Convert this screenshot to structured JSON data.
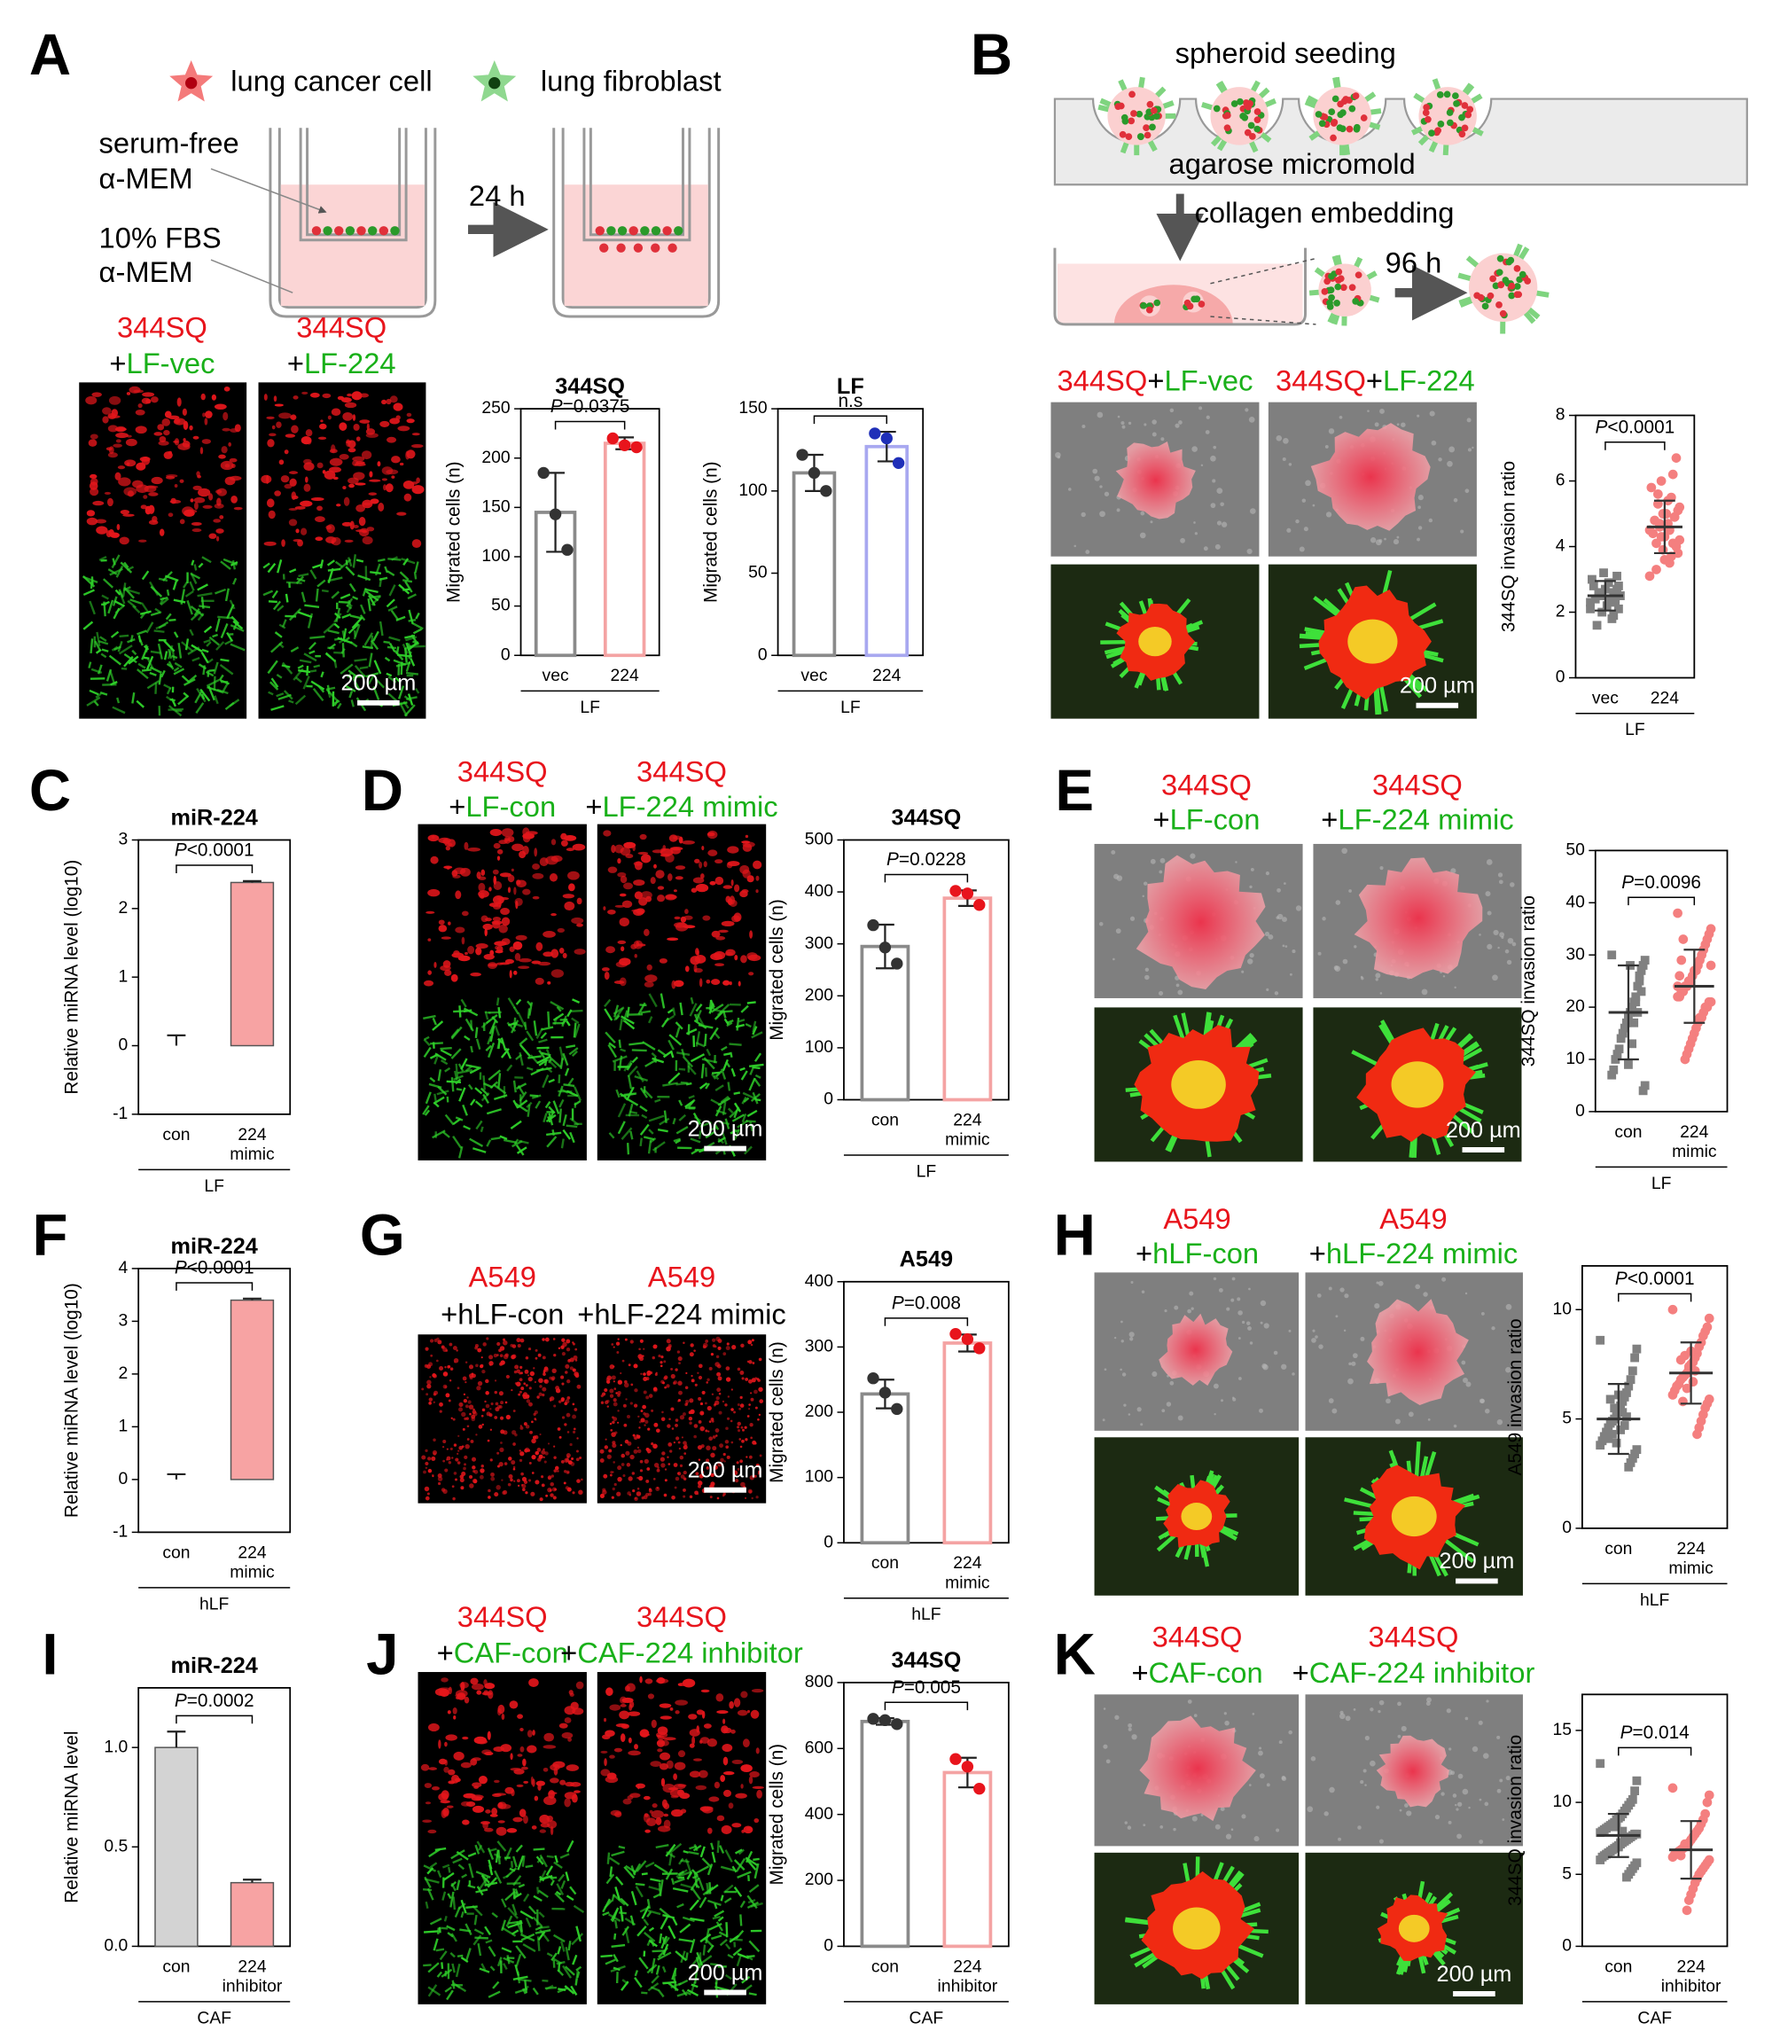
{
  "panels": [
    {
      "letter": "A",
      "cell_color": "#e8141c",
      "fibroblast_color": "#19b019",
      "image_labels": [
        {
          "cell": "344SQ",
          "plus": "+",
          "fibroblast": "LF-vec"
        },
        {
          "cell": "344SQ",
          "plus": "+",
          "fibroblast": "LF-224"
        }
      ],
      "scale_bar": "200 µm"
    },
    {
      "letter": "B",
      "label_layout": "inline",
      "cell_color": "#e8141c",
      "fibroblast_color": "#19b019",
      "image_labels": [
        {
          "cell": "344SQ",
          "plus": "+",
          "fibroblast": "LF-vec"
        },
        {
          "cell": "344SQ",
          "plus": "+",
          "fibroblast": "LF-224"
        }
      ],
      "scale_bar": "200 µm"
    },
    {
      "letter": "C"
    },
    {
      "letter": "D",
      "cell_color": "#e8141c",
      "fibroblast_color": "#19b019",
      "image_labels": [
        {
          "cell": "344SQ",
          "plus": "+",
          "fibroblast": "LF-con"
        },
        {
          "cell": "344SQ",
          "plus": "+",
          "fibroblast": "LF-224 mimic"
        }
      ],
      "scale_bar": "200 µm"
    },
    {
      "letter": "E",
      "cell_color": "#e8141c",
      "fibroblast_color": "#19b019",
      "image_labels": [
        {
          "cell": "344SQ",
          "plus": "+",
          "fibroblast": "LF-con"
        },
        {
          "cell": "344SQ",
          "plus": "+",
          "fibroblast": "LF-224 mimic"
        }
      ],
      "scale_bar": "200 µm"
    },
    {
      "letter": "F"
    },
    {
      "letter": "G",
      "cell_color": "#e8141c",
      "fibroblast_color": "#000000",
      "image_labels": [
        {
          "cell": "A549",
          "plus": "+",
          "fibroblast": "hLF-con"
        },
        {
          "cell": "A549",
          "plus": "+",
          "fibroblast": "hLF-224 mimic"
        }
      ],
      "scale_bar": "200 µm"
    },
    {
      "letter": "H",
      "cell_color": "#e8141c",
      "fibroblast_color": "#19b019",
      "image_labels": [
        {
          "cell": "A549",
          "plus": "+",
          "fibroblast": "hLF-con"
        },
        {
          "cell": "A549",
          "plus": "+",
          "fibroblast": "hLF-224 mimic"
        }
      ],
      "scale_bar": "200 µm"
    },
    {
      "letter": "I"
    },
    {
      "letter": "J",
      "cell_color": "#e8141c",
      "fibroblast_color": "#19b019",
      "image_labels": [
        {
          "cell": "344SQ",
          "plus": "+",
          "fibroblast": "CAF-con"
        },
        {
          "cell": "344SQ",
          "plus": "+",
          "fibroblast": "CAF-224 inhibitor"
        }
      ],
      "scale_bar": "200 µm"
    },
    {
      "letter": "K",
      "cell_color": "#e8141c",
      "fibroblast_color": "#19b019",
      "image_labels": [
        {
          "cell": "344SQ",
          "plus": "+",
          "fibroblast": "CAF-con"
        },
        {
          "cell": "344SQ",
          "plus": "+",
          "fibroblast": "CAF-224 inhibitor"
        }
      ],
      "scale_bar": "200 µm"
    }
  ],
  "schematic_A": {
    "legend": [
      "lung cancer cell",
      "lung fibroblast"
    ],
    "upper_medium": [
      "serum-free",
      "α-MEM"
    ],
    "lower_medium": [
      "10% FBS",
      "α-MEM"
    ],
    "time": "24 h"
  },
  "schematic_B": {
    "step1": "spheroid seeding",
    "mold": "agarose micromold",
    "step2": "collagen embedding",
    "time": "96 h"
  },
  "chart_data": [
    {
      "type": "bar",
      "title": "344SQ",
      "ylabel": "Migrated cells (n)",
      "categories": [
        [
          "vec"
        ],
        [
          "224"
        ]
      ],
      "group": "LF",
      "values": [
        145,
        215
      ],
      "errors": [
        40,
        6
      ],
      "points": [
        [
          185,
          143,
          107
        ],
        [
          220,
          213,
          211
        ]
      ],
      "ylim": [
        0,
        250
      ],
      "yticks": [
        0,
        50,
        100,
        150,
        200,
        250
      ],
      "filled": false,
      "colors": [
        "#8a8a8a",
        "#f4a3a3"
      ],
      "point_colors": [
        "#333333",
        "#e8141c"
      ],
      "annotation": [
        "P",
        "=0.0375"
      ]
    },
    {
      "type": "bar",
      "title": "LF",
      "ylabel": "Migrated cells (n)",
      "categories": [
        [
          "vec"
        ],
        [
          "224"
        ]
      ],
      "group": "LF",
      "values": [
        111,
        127
      ],
      "errors": [
        11,
        9
      ],
      "points": [
        [
          122,
          111,
          100
        ],
        [
          135,
          132,
          117
        ]
      ],
      "ylim": [
        0,
        150
      ],
      "yticks": [
        0,
        50,
        100,
        150
      ],
      "filled": false,
      "colors": [
        "#8a8a8a",
        "#a8a8f0"
      ],
      "point_colors": [
        "#333333",
        "#1f2fb8"
      ],
      "annotation": [
        "n.s"
      ]
    },
    {
      "type": "strip",
      "ylabel": "344SQ invasion ratio",
      "categories": [
        [
          "vec"
        ],
        [
          "224"
        ]
      ],
      "group": "LF",
      "ylim": [
        0,
        8
      ],
      "yticks": [
        0,
        2,
        4,
        6,
        8
      ],
      "values": [
        2.5,
        4.6
      ],
      "errors": [
        0.45,
        0.8
      ],
      "markers": [
        "square",
        "circle"
      ],
      "colors": [
        "#808080",
        "#f47f7f"
      ],
      "points": [
        [
          2.1,
          2.5,
          2.8,
          3.1,
          2.3,
          2.6,
          1.8,
          2.4,
          2.9,
          2.2,
          2.7,
          3.2,
          2.0,
          2.5,
          2.6,
          1.6,
          2.4,
          2.8,
          3.0,
          2.3,
          2.5,
          2.1,
          2.7,
          2.4,
          1.9
        ],
        [
          4.5,
          5.2,
          3.8,
          6.7,
          4.9,
          4.1,
          5.5,
          3.5,
          4.7,
          5.0,
          4.3,
          3.9,
          6.0,
          4.6,
          5.3,
          3.3,
          4.8,
          4.4,
          5.8,
          3.1,
          4.2,
          5.1,
          4.0,
          4.9,
          6.2,
          3.7,
          4.5,
          5.4,
          4.6,
          3.6,
          5.0,
          4.3,
          4.7,
          5.6,
          4.1
        ]
      ],
      "annotation": [
        "P",
        "<0.0001"
      ]
    },
    {
      "type": "bar",
      "title": "miR-224",
      "ylabel": "Relative miRNA level (log10)",
      "categories": [
        [
          "con"
        ],
        [
          "224",
          "mimic"
        ]
      ],
      "group": "LF",
      "values": [
        0,
        2.38
      ],
      "errors": [
        0.15,
        0.02
      ],
      "ylim": [
        -1,
        3
      ],
      "yticks": [
        -1,
        0,
        1,
        2,
        3
      ],
      "filled": true,
      "colors": [
        "#d3d3d3",
        "#f7a3a3"
      ],
      "annotation": [
        "P",
        "<0.0001"
      ]
    },
    {
      "type": "bar",
      "title": "344SQ",
      "ylabel": "Migrated cells (n)",
      "categories": [
        [
          "con"
        ],
        [
          "224",
          "mimic"
        ]
      ],
      "group": "LF",
      "values": [
        295,
        388
      ],
      "errors": [
        42,
        15
      ],
      "points": [
        [
          336,
          293,
          262
        ],
        [
          402,
          397,
          375
        ]
      ],
      "ylim": [
        0,
        500
      ],
      "yticks": [
        0,
        100,
        200,
        300,
        400,
        500
      ],
      "filled": false,
      "colors": [
        "#8a8a8a",
        "#f4a3a3"
      ],
      "point_colors": [
        "#333333",
        "#e8141c"
      ],
      "annotation": [
        "P",
        "=0.0228"
      ]
    },
    {
      "type": "strip",
      "ylabel": "344SQ invasion ratio",
      "categories": [
        [
          "con"
        ],
        [
          "224",
          "mimic"
        ]
      ],
      "group": "LF",
      "ylim": [
        0,
        50
      ],
      "yticks": [
        0,
        10,
        20,
        30,
        40,
        50
      ],
      "values": [
        19,
        24
      ],
      "errors": [
        9,
        7
      ],
      "markers": [
        "square",
        "circle"
      ],
      "colors": [
        "#808080",
        "#f47f7f"
      ],
      "points": [
        [
          30,
          29,
          28,
          27,
          25,
          24,
          22,
          21,
          20,
          19,
          18,
          17,
          16,
          15,
          14,
          12,
          11,
          10,
          8,
          7,
          5,
          4,
          23,
          26,
          19,
          21,
          17,
          13,
          28,
          9
        ],
        [
          38,
          35,
          34,
          33,
          32,
          31,
          30,
          29,
          28,
          27,
          27,
          26,
          25,
          25,
          24,
          24,
          23,
          23,
          22,
          22,
          21,
          21,
          20,
          20,
          19,
          18,
          18,
          17,
          16,
          15,
          14,
          13,
          12,
          11,
          10,
          33,
          29,
          26,
          24,
          28
        ]
      ],
      "annotation": [
        "P",
        "=0.0096"
      ]
    },
    {
      "type": "bar",
      "title": "miR-224",
      "ylabel": "Relative miRNA level (log10)",
      "categories": [
        [
          "con"
        ],
        [
          "224",
          "mimic"
        ]
      ],
      "group": "hLF",
      "values": [
        0,
        3.4
      ],
      "errors": [
        0.1,
        0.03
      ],
      "ylim": [
        -1,
        4
      ],
      "yticks": [
        -1,
        0,
        1,
        2,
        3,
        4
      ],
      "filled": true,
      "colors": [
        "#d3d3d3",
        "#f7a3a3"
      ],
      "annotation": [
        "P",
        "<0.0001"
      ]
    },
    {
      "type": "bar",
      "title": "A549",
      "ylabel": "Migrated cells (n)",
      "categories": [
        [
          "con"
        ],
        [
          "224",
          "mimic"
        ]
      ],
      "group": "hLF",
      "values": [
        228,
        306
      ],
      "errors": [
        22,
        13
      ],
      "points": [
        [
          252,
          230,
          205
        ],
        [
          320,
          312,
          298
        ]
      ],
      "ylim": [
        0,
        400
      ],
      "yticks": [
        0,
        100,
        200,
        300,
        400
      ],
      "filled": false,
      "colors": [
        "#8a8a8a",
        "#f4a3a3"
      ],
      "point_colors": [
        "#333333",
        "#e8141c"
      ],
      "annotation": [
        "P",
        "=0.008"
      ]
    },
    {
      "type": "strip",
      "ylabel": "A549 invasion ratio",
      "categories": [
        [
          "con"
        ],
        [
          "224",
          "mimic"
        ]
      ],
      "group": "hLF",
      "ylim": [
        0,
        12
      ],
      "yticks": [
        0,
        5,
        10
      ],
      "values": [
        5.0,
        7.1
      ],
      "errors": [
        1.6,
        1.4
      ],
      "markers": [
        "square",
        "circle"
      ],
      "colors": [
        "#808080",
        "#f47f7f"
      ],
      "points": [
        [
          8.6,
          8.2,
          7.8,
          7.2,
          6.8,
          6.5,
          6.2,
          6.0,
          5.8,
          5.6,
          5.4,
          5.2,
          5.0,
          4.9,
          4.8,
          4.6,
          4.4,
          4.2,
          4.0,
          3.8,
          3.6,
          3.4,
          3.2,
          3.0,
          2.8,
          5.1,
          4.7,
          5.3,
          4.5,
          6.1,
          3.9,
          5.5,
          4.3,
          5.9,
          4.1
        ],
        [
          10,
          9.6,
          9.2,
          9.0,
          8.8,
          8.5,
          8.3,
          8.0,
          7.8,
          7.6,
          7.5,
          7.3,
          7.1,
          7.0,
          6.9,
          6.8,
          6.6,
          6.5,
          6.3,
          6.1,
          5.9,
          5.7,
          5.5,
          5.2,
          4.9,
          4.6,
          4.3,
          7.2,
          6.7,
          8.1,
          7.4,
          6.4,
          7.9,
          5.8,
          7.7
        ]
      ],
      "annotation": [
        "P",
        "<0.0001"
      ]
    },
    {
      "type": "bar",
      "title": "miR-224",
      "ylabel": "Relative miRNA level",
      "categories": [
        [
          "con"
        ],
        [
          "224",
          "inhibitor"
        ]
      ],
      "group": "CAF",
      "values": [
        1.0,
        0.32
      ],
      "errors": [
        0.08,
        0.015
      ],
      "ylim": [
        0,
        1.3
      ],
      "yticks": [
        {
          "value": 0,
          "label": "0.0"
        },
        0.5,
        {
          "value": 1,
          "label": "1.0"
        }
      ],
      "filled": true,
      "colors": [
        "#d3d3d3",
        "#f7a3a3"
      ],
      "annotation": [
        "P",
        "=0.0002"
      ]
    },
    {
      "type": "bar",
      "title": "344SQ",
      "ylabel": "Migrated cells (n)",
      "categories": [
        [
          "con"
        ],
        [
          "224",
          "inhibitor"
        ]
      ],
      "group": "CAF",
      "values": [
        682,
        527
      ],
      "errors": [
        10,
        45
      ],
      "points": [
        [
          690,
          686,
          674
        ],
        [
          568,
          545,
          478
        ]
      ],
      "ylim": [
        0,
        800
      ],
      "yticks": [
        0,
        200,
        400,
        600,
        800
      ],
      "filled": false,
      "colors": [
        "#8a8a8a",
        "#f4a3a3"
      ],
      "point_colors": [
        "#333333",
        "#e8141c"
      ],
      "annotation": [
        "P",
        "=0.005"
      ]
    },
    {
      "type": "strip",
      "ylabel": "344SQ invasion ratio",
      "categories": [
        [
          "con"
        ],
        [
          "224",
          "inhibitor"
        ]
      ],
      "group": "CAF",
      "ylim": [
        0,
        17.5
      ],
      "yticks": [
        0,
        5,
        10,
        15
      ],
      "values": [
        7.7,
        6.7
      ],
      "errors": [
        1.5,
        2.0
      ],
      "markers": [
        "square",
        "circle"
      ],
      "colors": [
        "#808080",
        "#f47f7f"
      ],
      "points": [
        [
          12.7,
          11.5,
          10.8,
          10.2,
          10.0,
          9.8,
          9.6,
          9.4,
          9.2,
          9.0,
          8.9,
          8.8,
          8.6,
          8.5,
          8.4,
          8.3,
          8.2,
          8.1,
          8.0,
          7.9,
          7.8,
          7.8,
          7.7,
          7.6,
          7.5,
          7.4,
          7.3,
          7.2,
          7.1,
          7.0,
          6.9,
          6.8,
          6.7,
          6.6,
          6.5,
          6.4,
          6.3,
          6.2,
          6.0,
          5.8,
          5.6,
          5.4,
          5.2,
          5.0,
          4.8,
          7.5,
          8.0,
          7.2,
          6.9,
          8.3
        ],
        [
          11,
          10.5,
          10,
          9.2,
          8.8,
          8.5,
          8.2,
          8.0,
          7.8,
          7.6,
          7.4,
          7.2,
          7.0,
          6.9,
          6.8,
          6.7,
          6.6,
          6.5,
          6.4,
          6.2,
          6.0,
          5.8,
          5.6,
          5.4,
          5.2,
          5.0,
          4.7,
          4.4,
          4.0,
          3.6,
          3.2,
          2.5,
          7.1,
          6.8,
          6.3
        ]
      ],
      "annotation": [
        "P",
        "=0.014"
      ]
    }
  ]
}
